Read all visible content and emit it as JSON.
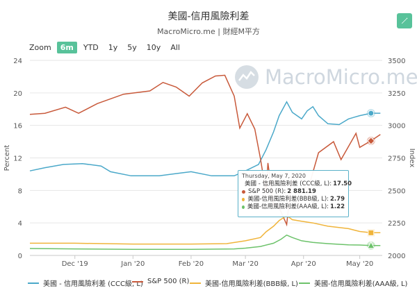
{
  "title": "美國-信用風險利差",
  "subtitle": "MacroMicro.me | 財經M平方",
  "watermark": "MacroMicro.me",
  "edit_icon": "pencil-icon",
  "zoom": {
    "label": "Zoom",
    "buttons": [
      {
        "label": "6m",
        "active": true
      },
      {
        "label": "YTD",
        "active": false
      },
      {
        "label": "1y",
        "active": false
      },
      {
        "label": "5y",
        "active": false
      },
      {
        "label": "10y",
        "active": false
      },
      {
        "label": "All",
        "active": false
      }
    ]
  },
  "tooltip": {
    "date": "Thursday, May 7, 2020",
    "rows": [
      {
        "label": "美國 - 信用風險利差 (CCC級, L):",
        "value": "17.50",
        "color": "#4aa8c9"
      },
      {
        "label": "S&P 500 (R):",
        "value": "2 881.19",
        "color": "#c8593a"
      },
      {
        "label": "美國-信用風險利差(BBB級, L):",
        "value": "2.79",
        "color": "#f0b43a"
      },
      {
        "label": "美國-信用風險利差(AAA級, L):",
        "value": "1.22",
        "color": "#6cc26a"
      }
    ]
  },
  "chart_data": {
    "type": "line",
    "title": "美國-信用風險利差",
    "subtitle": "MacroMicro.me | 財經M平方",
    "x_range": [
      "2019-11-07",
      "2020-05-13"
    ],
    "x_ticks": [
      {
        "date": "2019-12-01",
        "label": "Dec '19"
      },
      {
        "date": "2020-01-01",
        "label": "Jan '20"
      },
      {
        "date": "2020-02-01",
        "label": "Feb '20"
      },
      {
        "date": "2020-03-01",
        "label": "Mar '20"
      },
      {
        "date": "2020-04-01",
        "label": "Apr '20"
      },
      {
        "date": "2020-05-01",
        "label": "May '20"
      }
    ],
    "y_left": {
      "label": "Percent",
      "min": 0,
      "max": 24,
      "ticks": [
        0,
        4,
        8,
        12,
        16,
        20,
        24
      ]
    },
    "y_right": {
      "label": "Index",
      "min": 2000,
      "max": 3500,
      "ticks": [
        2000,
        2250,
        2500,
        2750,
        3000,
        3250,
        3500
      ]
    },
    "grid": true,
    "legend_position": "bottom",
    "series": [
      {
        "name": "美國 - 信用風險利差 (CCC級, L)",
        "axis": "left",
        "color": "#4aa8c9",
        "points": [
          [
            "2019-11-07",
            10.4
          ],
          [
            "2019-11-15",
            10.8
          ],
          [
            "2019-11-25",
            11.2
          ],
          [
            "2019-12-05",
            11.3
          ],
          [
            "2019-12-15",
            11.0
          ],
          [
            "2019-12-20",
            10.3
          ],
          [
            "2019-12-31",
            9.8
          ],
          [
            "2020-01-15",
            9.8
          ],
          [
            "2020-01-25",
            10.1
          ],
          [
            "2020-02-01",
            10.3
          ],
          [
            "2020-02-12",
            9.8
          ],
          [
            "2020-02-24",
            9.8
          ],
          [
            "2020-03-01",
            10.4
          ],
          [
            "2020-03-08",
            11.2
          ],
          [
            "2020-03-12",
            13.0
          ],
          [
            "2020-03-16",
            15.2
          ],
          [
            "2020-03-19",
            17.2
          ],
          [
            "2020-03-23",
            18.9
          ],
          [
            "2020-03-26",
            17.6
          ],
          [
            "2020-03-31",
            16.8
          ],
          [
            "2020-04-03",
            17.8
          ],
          [
            "2020-04-06",
            18.3
          ],
          [
            "2020-04-09",
            17.2
          ],
          [
            "2020-04-14",
            16.2
          ],
          [
            "2020-04-20",
            16.1
          ],
          [
            "2020-04-25",
            16.8
          ],
          [
            "2020-05-01",
            17.2
          ],
          [
            "2020-05-07",
            17.5
          ],
          [
            "2020-05-12",
            17.5
          ]
        ]
      },
      {
        "name": "S&P 500 (R)",
        "axis": "right",
        "color": "#c8593a",
        "points": [
          [
            "2019-11-07",
            3085
          ],
          [
            "2019-11-15",
            3093
          ],
          [
            "2019-11-26",
            3140
          ],
          [
            "2019-12-03",
            3093
          ],
          [
            "2019-12-13",
            3168
          ],
          [
            "2019-12-27",
            3240
          ],
          [
            "2020-01-10",
            3265
          ],
          [
            "2020-01-17",
            3330
          ],
          [
            "2020-01-24",
            3295
          ],
          [
            "2020-01-31",
            3225
          ],
          [
            "2020-02-07",
            3327
          ],
          [
            "2020-02-14",
            3380
          ],
          [
            "2020-02-19",
            3386
          ],
          [
            "2020-02-24",
            3225
          ],
          [
            "2020-02-27",
            2979
          ],
          [
            "2020-03-02",
            3090
          ],
          [
            "2020-03-06",
            2972
          ],
          [
            "2020-03-09",
            2746
          ],
          [
            "2020-03-12",
            2480
          ],
          [
            "2020-03-13",
            2711
          ],
          [
            "2020-03-16",
            2386
          ],
          [
            "2020-03-18",
            2398
          ],
          [
            "2020-03-23",
            2237
          ],
          [
            "2020-03-26",
            2630
          ],
          [
            "2020-03-31",
            2585
          ],
          [
            "2020-04-03",
            2488
          ],
          [
            "2020-04-09",
            2790
          ],
          [
            "2020-04-17",
            2875
          ],
          [
            "2020-04-21",
            2737
          ],
          [
            "2020-04-29",
            2939
          ],
          [
            "2020-05-01",
            2831
          ],
          [
            "2020-05-07",
            2881.19
          ],
          [
            "2020-05-12",
            2930
          ]
        ]
      },
      {
        "name": "美國-信用風險利差(BBB級, L)",
        "axis": "left",
        "color": "#f0b43a",
        "points": [
          [
            "2019-11-07",
            1.5
          ],
          [
            "2019-12-01",
            1.5
          ],
          [
            "2020-01-01",
            1.4
          ],
          [
            "2020-02-01",
            1.4
          ],
          [
            "2020-02-20",
            1.45
          ],
          [
            "2020-03-01",
            1.8
          ],
          [
            "2020-03-09",
            2.2
          ],
          [
            "2020-03-12",
            2.9
          ],
          [
            "2020-03-16",
            3.6
          ],
          [
            "2020-03-19",
            4.3
          ],
          [
            "2020-03-23",
            4.9
          ],
          [
            "2020-03-26",
            4.4
          ],
          [
            "2020-03-31",
            4.2
          ],
          [
            "2020-04-06",
            4.0
          ],
          [
            "2020-04-14",
            3.6
          ],
          [
            "2020-04-25",
            3.3
          ],
          [
            "2020-05-01",
            2.95
          ],
          [
            "2020-05-07",
            2.79
          ],
          [
            "2020-05-12",
            2.79
          ]
        ]
      },
      {
        "name": "美國-信用風險利差(AAA級, L)",
        "axis": "left",
        "color": "#6cc26a",
        "points": [
          [
            "2019-11-07",
            0.85
          ],
          [
            "2019-12-01",
            0.8
          ],
          [
            "2020-01-01",
            0.75
          ],
          [
            "2020-02-01",
            0.75
          ],
          [
            "2020-02-24",
            0.8
          ],
          [
            "2020-03-01",
            0.9
          ],
          [
            "2020-03-09",
            1.1
          ],
          [
            "2020-03-16",
            1.5
          ],
          [
            "2020-03-20",
            2.0
          ],
          [
            "2020-03-23",
            2.5
          ],
          [
            "2020-03-26",
            2.2
          ],
          [
            "2020-03-31",
            1.8
          ],
          [
            "2020-04-06",
            1.6
          ],
          [
            "2020-04-14",
            1.45
          ],
          [
            "2020-04-25",
            1.3
          ],
          [
            "2020-05-01",
            1.28
          ],
          [
            "2020-05-07",
            1.22
          ],
          [
            "2020-05-12",
            1.22
          ]
        ]
      }
    ]
  }
}
